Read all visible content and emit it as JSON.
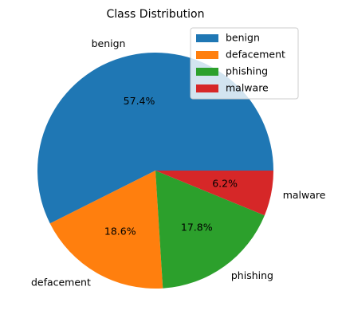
{
  "chart_data": {
    "type": "pie",
    "title": "Class Distribution",
    "categories": [
      "benign",
      "defacement",
      "phishing",
      "malware"
    ],
    "values": [
      57.4,
      18.6,
      17.8,
      6.2
    ],
    "value_labels": [
      "57.4%",
      "18.6%",
      "17.8%",
      "6.2%"
    ],
    "colors": [
      "#1f77b4",
      "#ff7f0e",
      "#2ca02c",
      "#d62728"
    ],
    "legend": {
      "placement": "top-right",
      "entries": [
        "benign",
        "defacement",
        "phishing",
        "malware"
      ]
    },
    "start_angle_deg": 0,
    "direction": "counterclockwise"
  }
}
